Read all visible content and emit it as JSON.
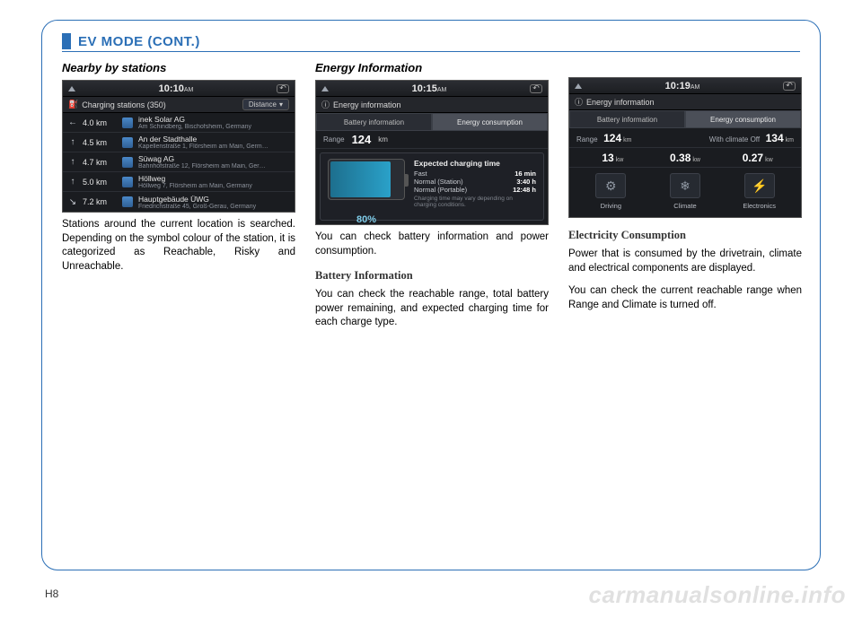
{
  "section_title": "EV MODE (CONT.)",
  "page_number": "H8",
  "watermark": "carmanualsonline.info",
  "col1": {
    "heading": "Nearby by stations",
    "body": "Stations around the current location is searched. Depending on the symbol colour of the station, it is categorized as Reachable, Risky and Unreachable.",
    "shot": {
      "clock": "10:10",
      "ampm": "AM",
      "subtitle": "Charging stations (350)",
      "sort": "Distance",
      "rows": [
        {
          "arrow": "←",
          "dist": "4.0 km",
          "name": "inek Solar AG",
          "addr": "Am Schindberg, Bischofsheim, Germany"
        },
        {
          "arrow": "↑",
          "dist": "4.5 km",
          "name": "An der Stadthalle",
          "addr": "Kapellenstraße 1, Flörsheim am Main, Germ…"
        },
        {
          "arrow": "↑",
          "dist": "4.7 km",
          "name": "Süwag AG",
          "addr": "Bahnhofstraße 12, Flörsheim am Main, Ger…"
        },
        {
          "arrow": "↑",
          "dist": "5.0 km",
          "name": "Höllweg",
          "addr": "Höllweg 7, Flörsheim am Main, Germany"
        },
        {
          "arrow": "↘",
          "dist": "7.2 km",
          "name": "Hauptgebäude ÜWG",
          "addr": "Friedrichstraße 45, Groß-Gerau, Germany"
        }
      ]
    }
  },
  "col2": {
    "heading": "Energy Information",
    "body1": "You can check battery information and power consumption.",
    "sub": "Battery Information",
    "body2": "You can check the reachable range, total battery power remaining, and expected charging time for each charge type.",
    "shot": {
      "clock": "10:15",
      "ampm": "AM",
      "title": "Energy information",
      "tab1": "Battery information",
      "tab2": "Energy consumption",
      "range_label": "Range",
      "range_value": "124",
      "range_unit": "km",
      "battery_pct": "80%",
      "ect_title": "Expected charging time",
      "lines": [
        {
          "l": "Fast",
          "r": "16 min"
        },
        {
          "l": "Normal (Station)",
          "r": "3:40 h"
        },
        {
          "l": "Normal (Portable)",
          "r": "12:48 h"
        }
      ],
      "note": "Charging time may vary depending on charging conditions."
    }
  },
  "col3": {
    "sub": "Electricity Consumption",
    "body1": "Power that is consumed by the drivetrain, climate and electrical components are displayed.",
    "body2": "You can check the current reachable range when Range and Climate is turned off.",
    "shot": {
      "clock": "10:19",
      "ampm": "AM",
      "title": "Energy information",
      "tab1": "Battery information",
      "tab2": "Energy consumption",
      "range_label": "Range",
      "range_value": "124",
      "range_unit": "km",
      "alt_label": "With climate Off",
      "alt_value": "134",
      "alt_unit": "km",
      "metrics": [
        {
          "v": "13",
          "u": "kw",
          "label": "Driving",
          "glyph": "⚙"
        },
        {
          "v": "0.38",
          "u": "kw",
          "label": "Climate",
          "glyph": "❄"
        },
        {
          "v": "0.27",
          "u": "kw",
          "label": "Electronics",
          "glyph": "⚡"
        }
      ]
    }
  }
}
